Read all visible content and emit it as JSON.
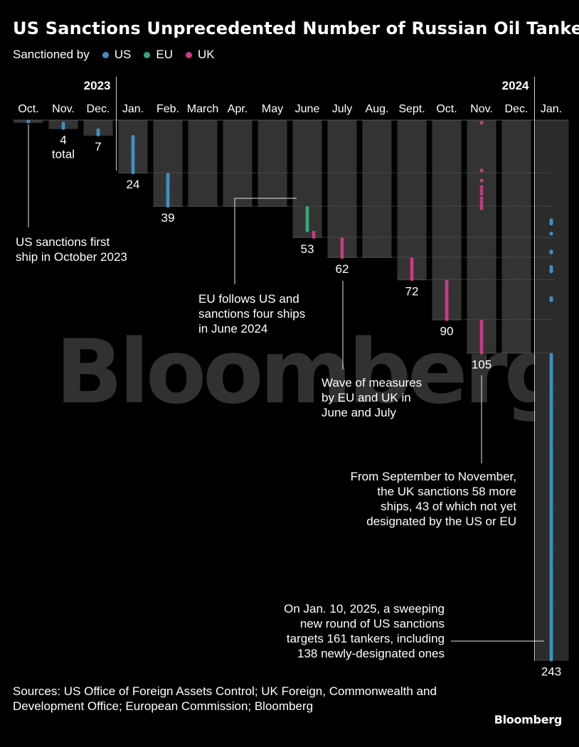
{
  "title": "US Sanctions Unprecedented Number of Russian Oil Tankers",
  "legend": {
    "label": "Sanctioned by",
    "items": [
      {
        "name": "US",
        "color": "#3d8fc4"
      },
      {
        "name": "EU",
        "color": "#3aa675"
      },
      {
        "name": "UK",
        "color": "#c93a84"
      }
    ]
  },
  "chart_data": {
    "type": "scatter",
    "years": [
      {
        "label": "2023",
        "from_month": 0
      },
      {
        "label": "2024",
        "from_month": 3
      }
    ],
    "months": [
      "Oct.",
      "Nov.",
      "Dec.",
      "Jan.",
      "Feb.",
      "March",
      "Apr.",
      "May",
      "June",
      "July",
      "Aug.",
      "Sept.",
      "Oct.",
      "Nov.",
      "Dec.",
      "Jan."
    ],
    "cumulative_totals": [
      1,
      4,
      7,
      24,
      39,
      39,
      39,
      39,
      53,
      62,
      62,
      72,
      90,
      105,
      105,
      243
    ],
    "total_labels": [
      {
        "month": 1,
        "value": "4",
        "suffix": "total"
      },
      {
        "month": 2,
        "value": "7"
      },
      {
        "month": 3,
        "value": "24"
      },
      {
        "month": 4,
        "value": "39"
      },
      {
        "month": 8,
        "value": "53"
      },
      {
        "month": 9,
        "value": "62"
      },
      {
        "month": 11,
        "value": "72"
      },
      {
        "month": 12,
        "value": "90"
      },
      {
        "month": 13,
        "value": "105"
      },
      {
        "month": 15,
        "value": "243"
      }
    ],
    "new_designations": [
      {
        "month": 0,
        "US": 1,
        "EU": 0,
        "UK": 0
      },
      {
        "month": 1,
        "US": 3,
        "EU": 0,
        "UK": 0
      },
      {
        "month": 2,
        "US": 3,
        "EU": 0,
        "UK": 0
      },
      {
        "month": 3,
        "US": 17,
        "EU": 0,
        "UK": 0
      },
      {
        "month": 4,
        "US": 15,
        "EU": 0,
        "UK": 0
      },
      {
        "month": 8,
        "US": 0,
        "EU": 11,
        "UK": 3
      },
      {
        "month": 9,
        "US": 0,
        "EU": 0,
        "UK": 9
      },
      {
        "month": 11,
        "US": 0,
        "EU": 0,
        "UK": 10
      },
      {
        "month": 12,
        "US": 0,
        "EU": 0,
        "UK": 18
      },
      {
        "month": 13,
        "US": 0,
        "EU": 0,
        "UK": 15
      },
      {
        "month": 15,
        "US": 138,
        "EU": 0,
        "UK": 0
      }
    ],
    "annotations": [
      {
        "id": "oct-2023",
        "lines": [
          "US sanctions first",
          "ship in October 2023"
        ]
      },
      {
        "id": "june-2024",
        "lines": [
          "EU follows US and",
          "sanctions four ships",
          "in June 2024"
        ]
      },
      {
        "id": "june-july",
        "lines": [
          "Wave of measures",
          "by EU and UK in",
          "June and July"
        ]
      },
      {
        "id": "sept-nov",
        "lines": [
          "From September to November,",
          "the UK sanctions 58 more",
          "ships, 43 of which not yet",
          "designated by the US or EU"
        ]
      },
      {
        "id": "jan-2025",
        "lines": [
          "On Jan. 10, 2025, a sweeping",
          "new round of US sanctions",
          "targets 161 tankers, including",
          "138 newly-designated ones"
        ]
      }
    ]
  },
  "watermark": "Bloomberg",
  "sources": "Sources: US Office of Foreign Assets Control; UK Foreign, Commonwealth and Development Office; European Commission; Bloomberg",
  "brand": "Bloomberg"
}
